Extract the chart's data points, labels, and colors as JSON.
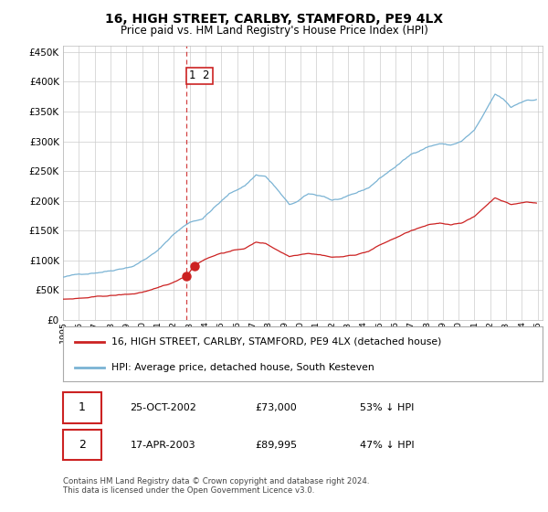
{
  "title": "16, HIGH STREET, CARLBY, STAMFORD, PE9 4LX",
  "subtitle": "Price paid vs. HM Land Registry's House Price Index (HPI)",
  "hpi_label": "HPI: Average price, detached house, South Kesteven",
  "property_label": "16, HIGH STREET, CARLBY, STAMFORD, PE9 4LX (detached house)",
  "transaction1_date": "25-OCT-2002",
  "transaction1_price": 73000,
  "transaction1_hpi": "53% ↓ HPI",
  "transaction2_date": "17-APR-2003",
  "transaction2_price": 89995,
  "transaction2_hpi": "47% ↓ HPI",
  "footer": "Contains HM Land Registry data © Crown copyright and database right 2024.\nThis data is licensed under the Open Government Licence v3.0.",
  "hpi_color": "#7ab3d4",
  "property_color": "#cc2222",
  "dashed_line_color": "#cc2222",
  "background_color": "#ffffff",
  "grid_color": "#cccccc",
  "ylim": [
    0,
    460000
  ],
  "xlim_start": 1995.0,
  "xlim_end": 2025.3,
  "transaction1_x": 2002.82,
  "transaction2_x": 2003.3,
  "transaction1_y": 73000,
  "transaction2_y": 89995
}
